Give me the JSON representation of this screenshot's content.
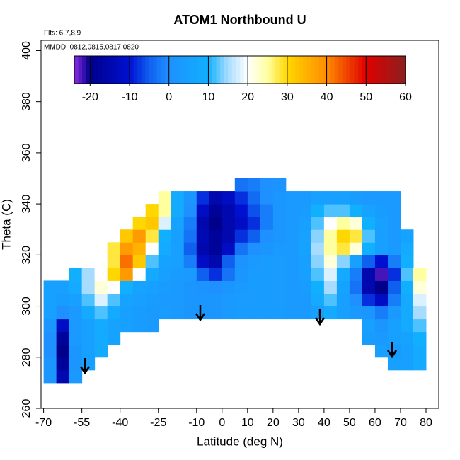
{
  "chart_data": {
    "type": "heatmap",
    "title": "ATOM1 Northbound U",
    "subtitle": "Flts: 6,7,8,9",
    "annotation": "MMDD: 0812,0815,0817,0820",
    "xlabel": "Latitude (deg N)",
    "ylabel": "Theta (C)",
    "xlim": [
      -71,
      85
    ],
    "ylim": [
      260,
      404
    ],
    "xticks": [
      -70,
      -55,
      -40,
      -25,
      -10,
      0,
      10,
      20,
      30,
      40,
      50,
      60,
      70,
      80
    ],
    "yticks": [
      260,
      280,
      300,
      320,
      340,
      360,
      380,
      400
    ],
    "clim": [
      -24,
      60
    ],
    "cticks": [
      -20,
      -10,
      0,
      10,
      20,
      30,
      40,
      50,
      60
    ],
    "colorscale": [
      [
        -24,
        "#8a2be2"
      ],
      [
        -20,
        "#00008b"
      ],
      [
        -10,
        "#0010d0"
      ],
      [
        -5,
        "#1060f0"
      ],
      [
        0,
        "#1e90ff"
      ],
      [
        10,
        "#10b0ff"
      ],
      [
        15,
        "#a8dcff"
      ],
      [
        20,
        "#ffffff"
      ],
      [
        25,
        "#ffffa0"
      ],
      [
        30,
        "#ffd700"
      ],
      [
        40,
        "#ff8c00"
      ],
      [
        50,
        "#e00000"
      ],
      [
        60,
        "#8b2020"
      ]
    ],
    "x": [
      -67.5,
      -62.5,
      -57.5,
      -52.5,
      -47.5,
      -42.5,
      -37.5,
      -32.5,
      -27.5,
      -22.5,
      -17.5,
      -12.5,
      -7.5,
      -2.5,
      2.5,
      7.5,
      12.5,
      17.5,
      22.5,
      27.5,
      32.5,
      37.5,
      42.5,
      47.5,
      52.5,
      57.5,
      62.5,
      67.5,
      72.5,
      77.5
    ],
    "y": [
      272.5,
      277.5,
      282.5,
      287.5,
      292.5,
      297.5,
      302.5,
      307.5,
      312.5,
      317.5,
      322.5,
      327.5,
      332.5,
      337.5,
      342.5,
      347.5
    ],
    "z": [
      [
        2,
        -15,
        3,
        null,
        null,
        null,
        null,
        null,
        null,
        null,
        null,
        null,
        null,
        null,
        null,
        null,
        null,
        null,
        null,
        null,
        null,
        null,
        null,
        null,
        null,
        null,
        null,
        null,
        null,
        null
      ],
      [
        2,
        -18,
        2,
        5,
        null,
        null,
        null,
        null,
        null,
        null,
        null,
        null,
        null,
        null,
        null,
        null,
        null,
        null,
        null,
        null,
        null,
        null,
        null,
        null,
        null,
        null,
        null,
        5,
        5,
        8
      ],
      [
        0,
        -20,
        2,
        5,
        8,
        null,
        null,
        null,
        null,
        null,
        null,
        null,
        null,
        null,
        null,
        null,
        null,
        null,
        null,
        null,
        null,
        null,
        null,
        null,
        null,
        null,
        5,
        3,
        5,
        8
      ],
      [
        0,
        -18,
        3,
        5,
        8,
        6,
        null,
        null,
        null,
        null,
        null,
        null,
        null,
        null,
        null,
        null,
        null,
        null,
        null,
        null,
        null,
        null,
        null,
        null,
        null,
        4,
        3,
        5,
        6,
        10
      ],
      [
        2,
        -12,
        3,
        5,
        8,
        6,
        5,
        4,
        3,
        null,
        null,
        null,
        null,
        null,
        null,
        null,
        null,
        null,
        null,
        null,
        null,
        null,
        null,
        null,
        null,
        5,
        2,
        5,
        8,
        12
      ],
      [
        5,
        0,
        3,
        8,
        12,
        8,
        5,
        4,
        3,
        4,
        3,
        2,
        2,
        2,
        3,
        4,
        4,
        4,
        4,
        3,
        3,
        5,
        8,
        5,
        3,
        2,
        -2,
        3,
        8,
        15
      ],
      [
        5,
        4,
        5,
        12,
        18,
        12,
        6,
        5,
        4,
        3,
        3,
        2,
        2,
        2,
        3,
        4,
        4,
        4,
        4,
        3,
        3,
        8,
        12,
        5,
        0,
        -8,
        -12,
        -2,
        8,
        18
      ],
      [
        5,
        5,
        8,
        15,
        22,
        20,
        10,
        6,
        5,
        4,
        3,
        2,
        1,
        0,
        2,
        3,
        4,
        4,
        4,
        3,
        4,
        10,
        15,
        6,
        -3,
        -15,
        -20,
        -5,
        10,
        22
      ],
      [
        null,
        null,
        10,
        15,
        20,
        30,
        38,
        20,
        8,
        5,
        4,
        3,
        -5,
        -8,
        -3,
        2,
        4,
        4,
        4,
        3,
        5,
        12,
        18,
        8,
        -2,
        -15,
        -22,
        -8,
        12,
        25
      ],
      [
        null,
        null,
        null,
        null,
        20,
        28,
        42,
        32,
        12,
        6,
        5,
        -2,
        -12,
        -15,
        -5,
        1,
        3,
        4,
        4,
        3,
        5,
        14,
        22,
        14,
        5,
        -5,
        -10,
        -2,
        10,
        null
      ],
      [
        null,
        null,
        null,
        null,
        null,
        28,
        38,
        35,
        20,
        8,
        5,
        -5,
        -15,
        -18,
        -12,
        -3,
        0,
        2,
        3,
        3,
        6,
        15,
        25,
        28,
        22,
        10,
        5,
        3,
        8,
        null
      ],
      [
        null,
        null,
        null,
        null,
        null,
        null,
        32,
        38,
        28,
        10,
        5,
        -3,
        -14,
        -18,
        -15,
        -8,
        -5,
        0,
        2,
        3,
        6,
        14,
        25,
        30,
        28,
        12,
        5,
        3,
        6,
        null
      ],
      [
        null,
        null,
        null,
        null,
        null,
        null,
        null,
        30,
        32,
        18,
        6,
        -2,
        -15,
        -20,
        -15,
        -12,
        -8,
        -2,
        2,
        3,
        5,
        12,
        20,
        25,
        22,
        10,
        5,
        3,
        null,
        null
      ],
      [
        null,
        null,
        null,
        null,
        null,
        null,
        null,
        null,
        30,
        25,
        8,
        0,
        -12,
        -18,
        -15,
        -10,
        -6,
        -2,
        2,
        3,
        4,
        10,
        12,
        12,
        10,
        6,
        4,
        3,
        null,
        null
      ],
      [
        null,
        null,
        null,
        null,
        null,
        null,
        null,
        null,
        null,
        25,
        8,
        2,
        -8,
        -15,
        -12,
        -8,
        -4,
        0,
        2,
        3,
        3,
        5,
        5,
        5,
        4,
        3,
        3,
        3,
        null,
        null
      ],
      [
        null,
        null,
        null,
        null,
        null,
        null,
        null,
        null,
        null,
        null,
        null,
        null,
        null,
        null,
        null,
        -3,
        -2,
        0,
        1,
        null,
        null,
        null,
        null,
        null,
        null,
        null,
        null,
        null,
        null,
        null
      ]
    ]
  }
}
